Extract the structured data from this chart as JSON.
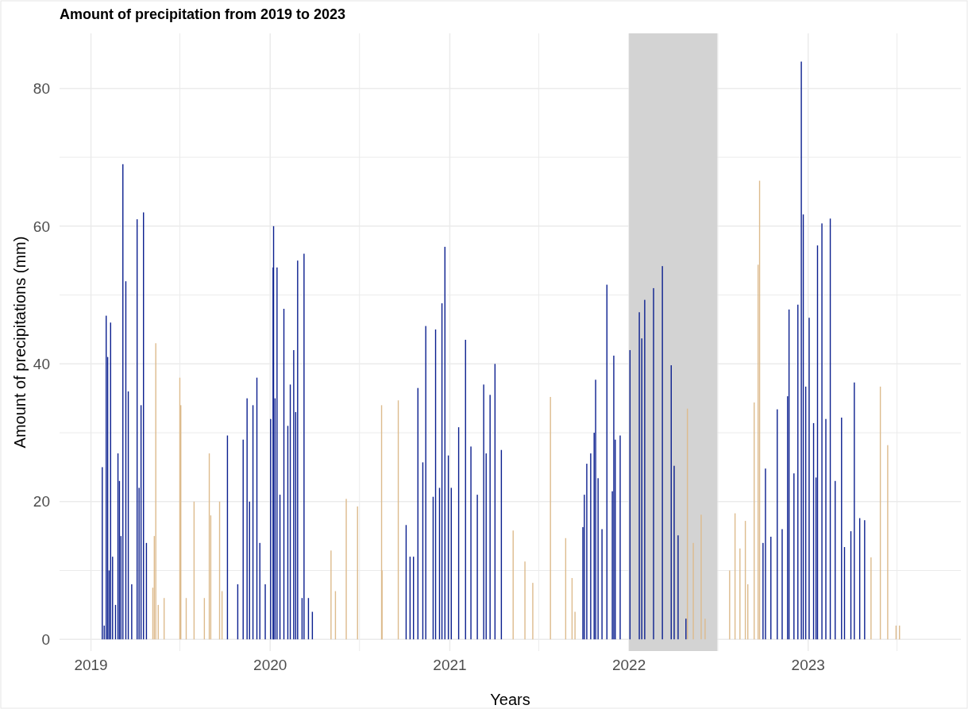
{
  "chart_data": {
    "type": "bar",
    "title": "Amount of precipitation from 2019 to 2023",
    "xlabel": "Years",
    "ylabel": "Amount of precipitations (mm)",
    "xlim": [
      "2018-10-29",
      "2023-11-08"
    ],
    "xticks": [
      {
        "value": "2019",
        "label": "2019"
      },
      {
        "value": "2019-07-01",
        "label": null
      },
      {
        "value": "2020",
        "label": "2020"
      },
      {
        "value": "2020-07-01",
        "label": null
      },
      {
        "value": "2021",
        "label": "2021"
      },
      {
        "value": "2021-07-01",
        "label": null
      },
      {
        "value": "2022",
        "label": "2022"
      },
      {
        "value": "2022-07-01",
        "label": null
      },
      {
        "value": "2023",
        "label": "2023"
      },
      {
        "value": "2023-07-01",
        "label": null
      }
    ],
    "ylim": [
      -1.7,
      88
    ],
    "yticks": [
      0,
      {
        "value": 10,
        "label": null
      },
      20,
      {
        "value": 30,
        "label": null
      },
      40,
      {
        "value": 50,
        "label": null
      },
      60,
      {
        "value": 70,
        "label": null
      },
      80
    ],
    "grid": true,
    "bands": [
      {
        "axis": "x",
        "from": "2022-01-01",
        "to": "2022-06-30",
        "color": "#d3d3d3"
      }
    ],
    "series": [
      {
        "color": "#0b1f8f",
        "x": [
          "2019-01-24",
          "2019-01-28",
          "2019-02-01",
          "2019-02-04",
          "2019-02-07",
          "2019-02-10",
          "2019-02-14",
          "2019-02-20",
          "2019-02-25",
          "2019-02-28",
          "2019-03-03",
          "2019-03-07",
          "2019-03-13",
          "2019-03-18",
          "2019-03-25",
          "2019-04-05",
          "2019-04-09",
          "2019-04-13",
          "2019-04-18",
          "2019-04-24",
          "2019-10-06",
          "2019-10-27",
          "2019-11-07",
          "2019-11-15",
          "2019-11-20",
          "2019-11-27",
          "2019-12-05",
          "2019-12-11",
          "2019-12-22",
          "2020-01-02",
          "2020-01-07",
          "2020-01-08",
          "2020-01-11",
          "2020-01-15",
          "2020-01-21",
          "2020-01-29",
          "2020-02-06",
          "2020-02-11",
          "2020-02-18",
          "2020-02-22",
          "2020-02-26",
          "2020-03-06",
          "2020-03-10",
          "2020-03-19",
          "2020-03-27",
          "2020-10-04",
          "2020-10-12",
          "2020-10-19",
          "2020-10-28",
          "2020-11-07",
          "2020-11-13",
          "2020-11-28",
          "2020-12-03",
          "2020-12-11",
          "2020-12-16",
          "2020-12-22",
          "2020-12-29",
          "2021-01-04",
          "2021-01-19",
          "2021-02-02",
          "2021-02-13",
          "2021-02-26",
          "2021-03-11",
          "2021-03-16",
          "2021-03-24",
          "2021-04-03",
          "2021-04-16",
          "2021-09-29",
          "2021-10-02",
          "2021-10-07",
          "2021-10-15",
          "2021-10-22",
          "2021-10-25",
          "2021-10-30",
          "2021-11-07",
          "2021-11-17",
          "2021-11-28",
          "2021-12-01",
          "2021-12-04",
          "2021-12-14",
          "2022-01-03",
          "2022-01-22",
          "2022-01-27",
          "2022-02-02",
          "2022-02-20",
          "2022-03-10",
          "2022-03-28",
          "2022-04-03",
          "2022-04-11",
          "2022-04-27",
          "2022-10-01",
          "2022-10-06",
          "2022-10-17",
          "2022-10-30",
          "2022-11-09",
          "2022-11-20",
          "2022-11-23",
          "2022-12-03",
          "2022-12-11",
          "2022-12-18",
          "2022-12-22",
          "2022-12-27",
          "2023-01-03",
          "2023-01-12",
          "2023-01-17",
          "2023-01-20",
          "2023-01-29",
          "2023-02-06",
          "2023-02-15",
          "2023-02-25",
          "2023-03-10",
          "2023-03-16",
          "2023-03-29",
          "2023-04-05",
          "2023-04-16",
          "2023-04-26"
        ],
        "values": [
          25,
          2,
          47,
          41,
          10,
          46,
          12,
          5,
          27,
          23,
          15,
          69,
          52,
          36,
          8,
          61,
          22,
          34,
          62,
          14,
          29.6,
          8,
          29,
          35,
          20,
          34,
          38,
          14,
          8,
          32,
          54,
          60,
          35,
          54,
          21,
          48,
          31,
          37,
          42,
          33,
          55,
          6,
          56,
          6,
          4,
          16.6,
          12,
          12,
          36.5,
          25.7,
          45.5,
          20.7,
          45,
          22,
          48.8,
          57,
          26.7,
          22,
          30.8,
          43.5,
          28,
          21,
          37,
          27,
          35.5,
          40,
          27.5,
          16.3,
          21,
          25.5,
          27,
          30,
          37.7,
          23.4,
          16,
          51.5,
          21.5,
          41.2,
          29,
          29.6,
          42,
          47.5,
          43.7,
          49.3,
          51,
          54.2,
          39.8,
          25.2,
          15.1,
          3,
          14,
          24.8,
          14.9,
          33.4,
          16,
          35.3,
          47.9,
          24.1,
          48.6,
          83.9,
          61.7,
          36.7,
          46.7,
          31.4,
          23.5,
          57.2,
          60.4,
          32,
          61.1,
          23,
          32.2,
          13.4,
          15.7,
          37.3,
          17.6,
          17.3
        ]
      },
      {
        "color": "#ddbb8d",
        "x": [
          "2019-05-07",
          "2019-05-10",
          "2019-05-13",
          "2019-05-18",
          "2019-05-30",
          "2019-07-01",
          "2019-07-03",
          "2019-07-14",
          "2019-07-30",
          "2019-08-20",
          "2019-08-30",
          "2019-09-02",
          "2019-09-20",
          "2019-09-25",
          "2020-05-04",
          "2020-05-13",
          "2020-06-04",
          "2020-06-27",
          "2020-08-15",
          "2020-08-16",
          "2020-09-18",
          "2021-05-10",
          "2021-06-03",
          "2021-06-19",
          "2021-07-25",
          "2021-08-25",
          "2021-09-07",
          "2021-09-13",
          "2022-04-30",
          "2022-05-12",
          "2022-05-28",
          "2022-06-05",
          "2022-07-25",
          "2022-08-05",
          "2022-08-15",
          "2022-08-26",
          "2022-08-31",
          "2022-09-13",
          "2022-09-21",
          "2022-09-24",
          "2023-05-09",
          "2023-05-28",
          "2023-06-12",
          "2023-06-29",
          "2023-07-06"
        ],
        "values": [
          7.5,
          15,
          43,
          5,
          6,
          38,
          34,
          6,
          20,
          6,
          27,
          18,
          20,
          7,
          12.9,
          7,
          20.4,
          19.3,
          34,
          10,
          34.7,
          15.8,
          11.3,
          8.2,
          35.2,
          14.7,
          8.9,
          4,
          33.5,
          14,
          18.1,
          3,
          10,
          18.3,
          13.2,
          17.2,
          8,
          34.4,
          54.4,
          66.6,
          11.9,
          36.7,
          28.2,
          2,
          2
        ]
      }
    ]
  }
}
